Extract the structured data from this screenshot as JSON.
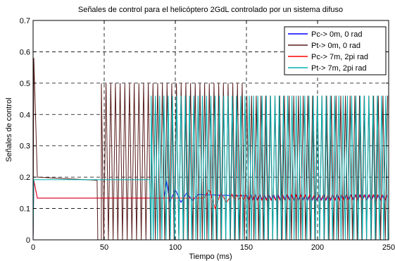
{
  "chart_data": {
    "type": "line",
    "title": "Señales de control para el helicóptero 2GdL controlado por un sistema difuso",
    "xlabel": "Tiempo (ms)",
    "ylabel": "Señales de control",
    "xlim": [
      0,
      250
    ],
    "ylim": [
      0,
      0.7
    ],
    "xticks": [
      0,
      50,
      100,
      150,
      200,
      250
    ],
    "xtick_labels": [
      "0",
      "50",
      "100",
      "150",
      "200",
      "250"
    ],
    "yticks": [
      0,
      0.1,
      0.2,
      0.3,
      0.4,
      0.5,
      0.6,
      0.7
    ],
    "ytick_labels": [
      "0",
      "0.1",
      "0.2",
      "0.3",
      "0.4",
      "0.5",
      "0.6",
      "0.7"
    ],
    "grid": "dashed, major ticks",
    "legend_position": "top-right",
    "series": [
      {
        "name": "Pc-> 0m, 0 rad",
        "color": "#0000ff",
        "description": "spike to 0.19 at t=0, settles 0.133; oscillation 92-150 ms decaying from ±0.06 to ±0.01",
        "pattern": [
          {
            "t": 0,
            "value": 0.0
          },
          {
            "t": 0.5,
            "value": 0.19
          },
          {
            "t": 3,
            "value": 0.133
          },
          {
            "t": 92,
            "value": 0.133
          },
          {
            "t": 94,
            "value": 0.19
          },
          {
            "t": 96,
            "value": 0.12
          },
          {
            "t": 100,
            "value": 0.16
          },
          {
            "t": 104,
            "value": 0.12
          },
          {
            "t": 108,
            "value": 0.15
          },
          {
            "t": 112,
            "value": 0.125
          },
          {
            "t": 116,
            "value": 0.145
          },
          {
            "t": 150,
            "value": 0.14
          },
          {
            "t": 250,
            "value": 0.135
          }
        ]
      },
      {
        "name": "Pt-> 0m, 0 rad",
        "color": "#5a1e1e",
        "description": "spike to 0.58 at t=0, ~0.2 until 45 ms, 0 until 48 ms, then oscillation 0-0.5 with period ~3.3 ms",
        "pattern": [
          {
            "t": 0,
            "value": 0.0
          },
          {
            "t": 0.5,
            "value": 0.58
          },
          {
            "t": 3,
            "value": 0.2
          },
          {
            "t": 45,
            "value": 0.19
          },
          {
            "t": 45.5,
            "value": 0.0
          },
          {
            "t": 48,
            "value": 0.0
          },
          {
            "t": 50,
            "value": 0.5
          }
        ],
        "oscillation": {
          "start": 48,
          "end": 250,
          "period": 3.3,
          "low": 0.0,
          "high": 0.5,
          "high_after_150": 0.46
        }
      },
      {
        "name": "Pc-> 7m, 2pi rad",
        "color": "#ff0000",
        "description": "0.133 from t=3; oscillation 120-150 ms then ±0.01",
        "pattern": [
          {
            "t": 0,
            "value": 0.0
          },
          {
            "t": 0.5,
            "value": 0.19
          },
          {
            "t": 3,
            "value": 0.133
          },
          {
            "t": 120,
            "value": 0.133
          },
          {
            "t": 124,
            "value": 0.16
          },
          {
            "t": 128,
            "value": 0.1
          },
          {
            "t": 132,
            "value": 0.15
          },
          {
            "t": 136,
            "value": 0.12
          },
          {
            "t": 140,
            "value": 0.145
          },
          {
            "t": 250,
            "value": 0.135
          }
        ]
      },
      {
        "name": "Pt-> 7m, 2pi rad",
        "color": "#00b0b0",
        "description": "0.192 from 0 to ~82 ms, then oscillation 0-0.46 with period ~3 ms",
        "pattern": [
          {
            "t": 0,
            "value": 0.0
          },
          {
            "t": 0.5,
            "value": 0.192
          },
          {
            "t": 82,
            "value": 0.192
          },
          {
            "t": 83,
            "value": 0.0
          }
        ],
        "oscillation": {
          "start": 83,
          "end": 250,
          "period": 3.0,
          "low": 0.0,
          "high": 0.46
        }
      }
    ]
  }
}
